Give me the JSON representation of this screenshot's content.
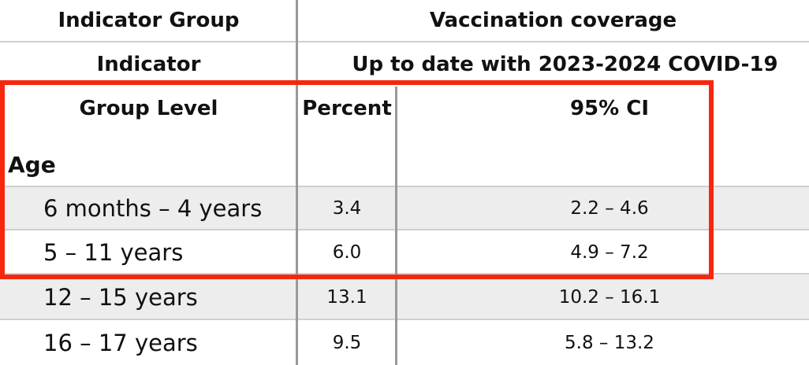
{
  "header": {
    "indicator_group_label": "Indicator Group",
    "indicator_group_value": "Vaccination coverage",
    "indicator_label": "Indicator",
    "indicator_value": "Up to date with 2023-2024 COVID-19"
  },
  "columns": {
    "group_level": "Group Level",
    "percent": "Percent",
    "ci": "95% CI"
  },
  "section_label": "Age",
  "rows": [
    {
      "group": "6 months – 4 years",
      "percent": "3.4",
      "ci": "2.2 – 4.6"
    },
    {
      "group": "5 – 11 years",
      "percent": "6.0",
      "ci": "4.9 – 7.2"
    },
    {
      "group": "12 – 15 years",
      "percent": "13.1",
      "ci": "10.2 – 16.1"
    },
    {
      "group": "16 – 17 years",
      "percent": "9.5",
      "ci": "5.8 – 13.2"
    }
  ],
  "highlight_color": "#f5280f"
}
